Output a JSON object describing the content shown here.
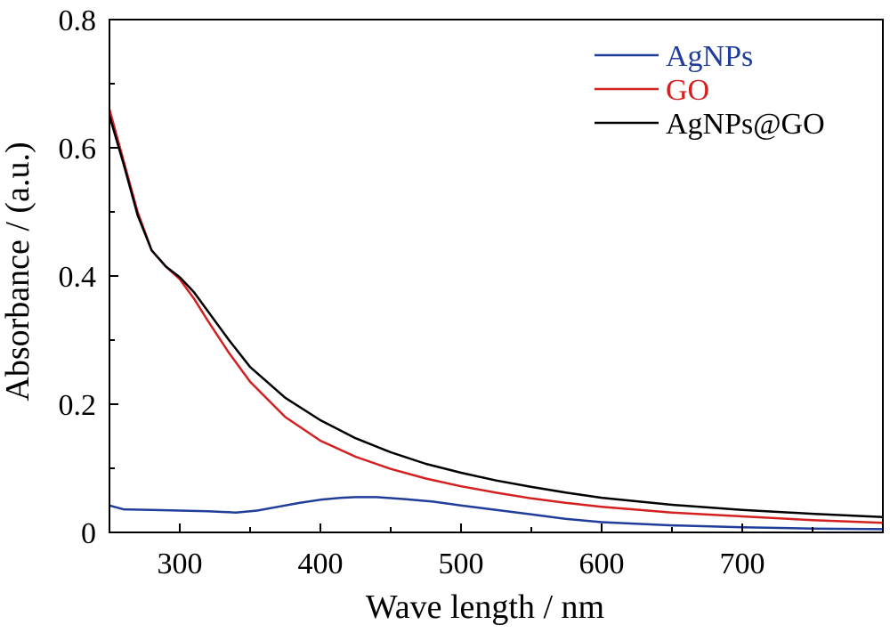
{
  "chart_data": {
    "type": "line",
    "title": "",
    "xlabel": "Wave length / nm",
    "ylabel": "Absorbance / (a.u.)",
    "xlim": [
      250,
      800
    ],
    "ylim": [
      0,
      0.8
    ],
    "xticks": [
      300,
      400,
      500,
      600,
      700
    ],
    "yticks": [
      0,
      0.2,
      0.4,
      0.6,
      0.8
    ],
    "ytick_labels": [
      "0",
      "0.2",
      "0.4",
      "0.6",
      "0.8"
    ],
    "grid": false,
    "legend_position": "top-right",
    "series": [
      {
        "name": "AgNPs",
        "color": "#1f3d99",
        "x": [
          250,
          260,
          280,
          300,
          320,
          340,
          355,
          370,
          385,
          400,
          415,
          425,
          440,
          460,
          480,
          500,
          525,
          550,
          575,
          600,
          650,
          700,
          750,
          800
        ],
        "y": [
          0.042,
          0.036,
          0.035,
          0.034,
          0.033,
          0.031,
          0.034,
          0.04,
          0.046,
          0.051,
          0.054,
          0.055,
          0.055,
          0.052,
          0.048,
          0.042,
          0.035,
          0.028,
          0.021,
          0.016,
          0.011,
          0.008,
          0.006,
          0.005
        ]
      },
      {
        "name": "GO",
        "color": "#d42020",
        "x": [
          250,
          260,
          270,
          280,
          290,
          300,
          310,
          320,
          335,
          350,
          375,
          400,
          425,
          450,
          475,
          500,
          525,
          550,
          575,
          600,
          650,
          700,
          750,
          800
        ],
        "y": [
          0.66,
          0.58,
          0.5,
          0.44,
          0.415,
          0.395,
          0.365,
          0.33,
          0.28,
          0.235,
          0.18,
          0.143,
          0.118,
          0.099,
          0.084,
          0.072,
          0.062,
          0.053,
          0.046,
          0.04,
          0.031,
          0.025,
          0.019,
          0.015
        ]
      },
      {
        "name": "AgNPs@GO",
        "color": "#000000",
        "x": [
          250,
          260,
          270,
          280,
          290,
          300,
          310,
          320,
          335,
          350,
          375,
          400,
          425,
          450,
          475,
          500,
          525,
          550,
          575,
          600,
          650,
          700,
          750,
          800
        ],
        "y": [
          0.65,
          0.575,
          0.495,
          0.44,
          0.415,
          0.398,
          0.375,
          0.345,
          0.3,
          0.258,
          0.21,
          0.175,
          0.147,
          0.125,
          0.107,
          0.093,
          0.081,
          0.071,
          0.062,
          0.054,
          0.043,
          0.035,
          0.029,
          0.024
        ]
      }
    ]
  }
}
